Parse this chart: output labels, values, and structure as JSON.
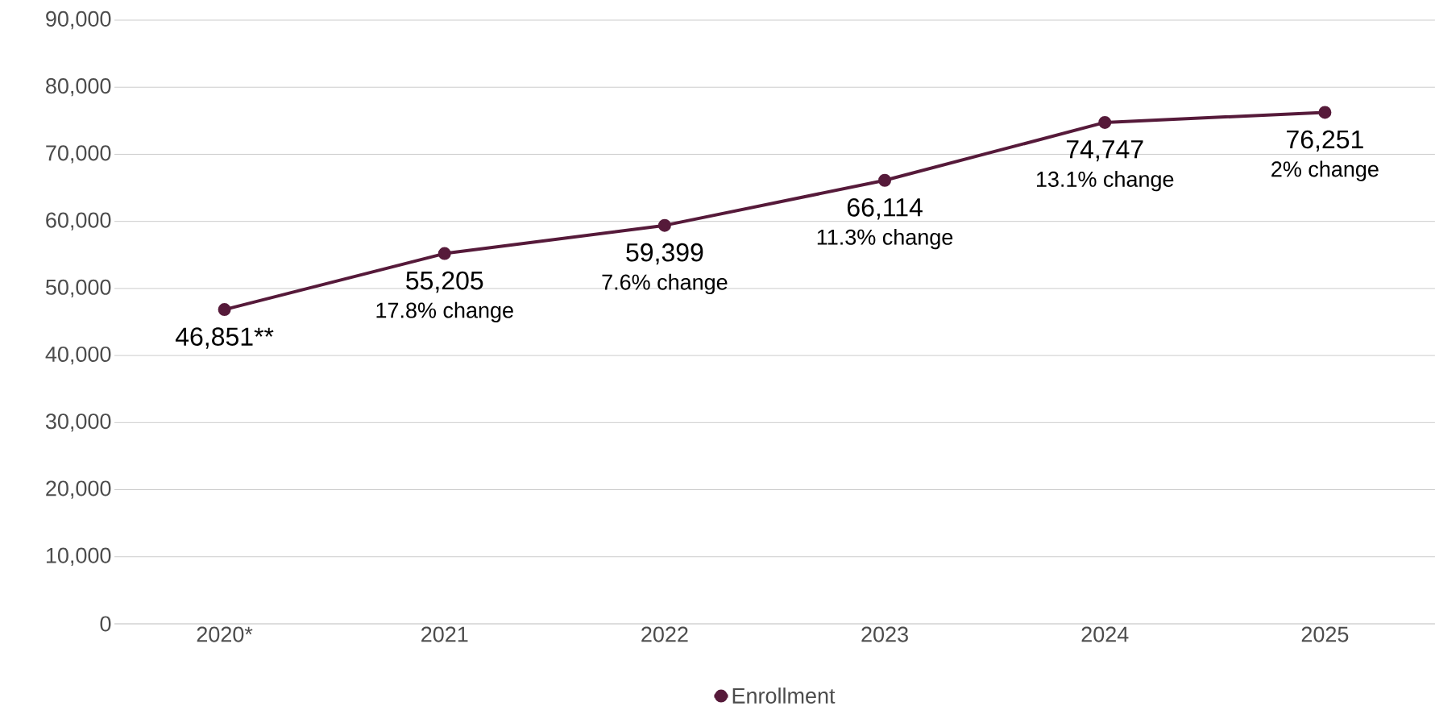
{
  "chart_data": {
    "type": "line",
    "categories": [
      "2020*",
      "2021",
      "2022",
      "2023",
      "2024",
      "2025"
    ],
    "series": [
      {
        "name": "Enrollment",
        "color": "#561a3a",
        "values": [
          46851,
          55205,
          59399,
          66114,
          74747,
          76251
        ],
        "value_labels": [
          "46,851**",
          "55,205",
          "59,399",
          "66,114",
          "74,747",
          "76,251"
        ]
      }
    ],
    "annotations": [
      {
        "text": "17.8% change",
        "x": "2021",
        "y": 55205
      },
      {
        "text": "7.6% change",
        "x": "2022",
        "y": 59399
      },
      {
        "text": "11.3% change",
        "x": "2023",
        "y": 66114
      },
      {
        "text": "13.1% change",
        "x": "2024",
        "y": 74747
      },
      {
        "text": "2% change",
        "x": "2025",
        "y": 76251
      }
    ],
    "ylim": [
      0,
      90000
    ],
    "yticks": [
      {
        "value": 0,
        "label": "0"
      },
      {
        "value": 10000,
        "label": "10,000"
      },
      {
        "value": 20000,
        "label": "20,000"
      },
      {
        "value": 30000,
        "label": "30,000"
      },
      {
        "value": 40000,
        "label": "40,000"
      },
      {
        "value": 50000,
        "label": "50,000"
      },
      {
        "value": 60000,
        "label": "60,000"
      },
      {
        "value": 70000,
        "label": "70,000"
      },
      {
        "value": 80000,
        "label": "80,000"
      },
      {
        "value": 90000,
        "label": "90,000"
      }
    ],
    "grid": "y",
    "legend": "bottom",
    "marker": "circle",
    "line_style": "solid"
  }
}
